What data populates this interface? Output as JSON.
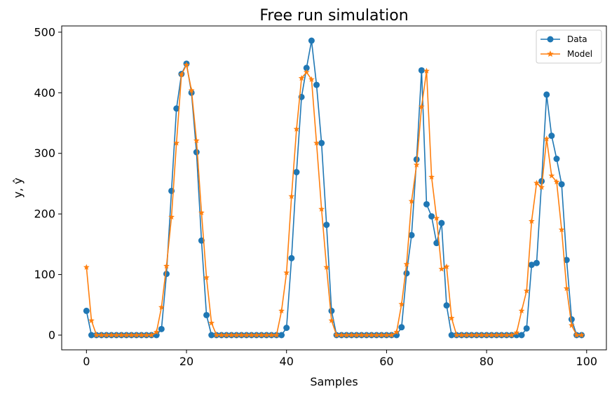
{
  "chart_data": {
    "type": "line",
    "title": "Free run simulation",
    "xlabel": "Samples",
    "ylabel": "y, ŷ",
    "xlim": [
      -4.95,
      103.95
    ],
    "ylim": [
      -24.3,
      510.3
    ],
    "xticks": [
      0,
      20,
      40,
      60,
      80,
      100
    ],
    "yticks": [
      0,
      100,
      200,
      300,
      400,
      500
    ],
    "xtick_labels": [
      "0",
      "20",
      "40",
      "60",
      "80",
      "100"
    ],
    "ytick_labels": [
      "0",
      "100",
      "200",
      "300",
      "400",
      "500"
    ],
    "grid": false,
    "legend_position": "top-right",
    "series": [
      {
        "name": "Data",
        "color": "#1f77b4",
        "marker": "circle",
        "values": [
          40,
          0,
          0,
          0,
          0,
          0,
          0,
          0,
          0,
          0,
          0,
          0,
          0,
          0,
          0,
          10,
          101,
          238,
          374,
          431,
          448,
          400,
          302,
          156,
          33,
          0,
          0,
          0,
          0,
          0,
          0,
          0,
          0,
          0,
          0,
          0,
          0,
          0,
          0,
          0,
          12,
          127,
          269,
          393,
          441,
          486,
          413,
          317,
          182,
          40,
          0,
          0,
          0,
          0,
          0,
          0,
          0,
          0,
          0,
          0,
          0,
          0,
          0,
          13,
          102,
          165,
          290,
          437,
          216,
          196,
          152,
          185,
          49,
          0,
          0,
          0,
          0,
          0,
          0,
          0,
          0,
          0,
          0,
          0,
          0,
          0,
          0,
          0,
          11,
          116,
          119,
          254,
          397,
          329,
          291,
          249,
          124,
          26,
          0,
          0
        ]
      },
      {
        "name": "Model",
        "color": "#ff7f0e",
        "marker": "star",
        "values": [
          112,
          24,
          0,
          0,
          0,
          0,
          0,
          0,
          0,
          0,
          0,
          0,
          0,
          0,
          5,
          46,
          114,
          195,
          317,
          430,
          446,
          404,
          321,
          202,
          95,
          20,
          0,
          0,
          0,
          0,
          0,
          0,
          0,
          0,
          0,
          0,
          0,
          0,
          0,
          40,
          103,
          229,
          340,
          424,
          434,
          422,
          317,
          208,
          112,
          24,
          0,
          0,
          0,
          0,
          0,
          0,
          0,
          0,
          0,
          0,
          0,
          0,
          5,
          51,
          117,
          221,
          281,
          377,
          436,
          261,
          193,
          109,
          113,
          28,
          0,
          0,
          0,
          0,
          0,
          0,
          0,
          0,
          0,
          0,
          0,
          0,
          4,
          40,
          73,
          188,
          251,
          244,
          324,
          263,
          253,
          174,
          77,
          16,
          0,
          0
        ]
      }
    ]
  }
}
